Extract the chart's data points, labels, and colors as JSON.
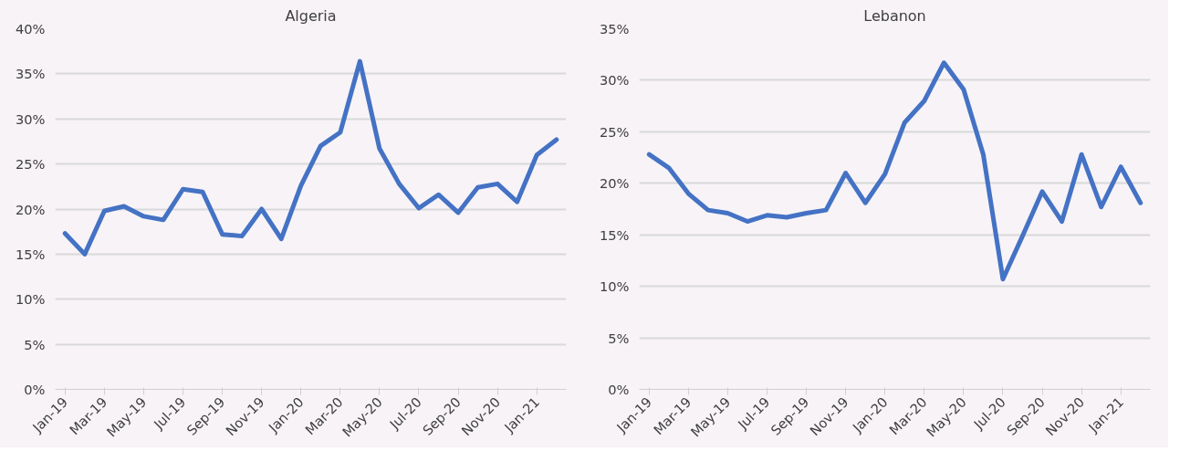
{
  "chart_data": [
    {
      "type": "line",
      "title": "Algeria",
      "categories": [
        "Jan-19",
        null,
        "Mar-19",
        null,
        "May-19",
        null,
        "Jul-19",
        null,
        "Sep-19",
        null,
        "Nov-19",
        null,
        "Jan-20",
        null,
        "Mar-20",
        null,
        "May-20",
        null,
        "Jul-20",
        null,
        "Sep-20",
        null,
        "Nov-20",
        null,
        "Jan-21",
        null
      ],
      "series": [
        {
          "color": "#4472c4",
          "values": [
            17.3,
            15.0,
            19.8,
            20.3,
            19.2,
            18.8,
            22.2,
            21.9,
            17.2,
            17.0,
            20.0,
            16.7,
            22.6,
            27.0,
            28.5,
            36.4,
            26.7,
            22.8,
            20.1,
            21.6,
            19.6,
            22.4,
            22.8,
            20.8,
            26.0,
            27.7
          ]
        }
      ],
      "ylim": [
        0,
        40
      ],
      "yticks": [
        {
          "value": 0,
          "label": "0%"
        },
        {
          "value": 5,
          "label": "5%"
        },
        {
          "value": 10,
          "label": "10%"
        },
        {
          "value": 15,
          "label": "15%"
        },
        {
          "value": 20,
          "label": "20%"
        },
        {
          "value": 25,
          "label": "25%"
        },
        {
          "value": 30,
          "label": "30%"
        },
        {
          "value": 35,
          "label": "35%"
        },
        {
          "value": 40,
          "label": "40%"
        }
      ],
      "grid": "y",
      "marker": "none",
      "line_style": "solid"
    },
    {
      "type": "line",
      "title": "Lebanon",
      "categories": [
        "Jan-19",
        null,
        "Mar-19",
        null,
        "May-19",
        null,
        "Jul-19",
        null,
        "Sep-19",
        null,
        "Nov-19",
        null,
        "Jan-20",
        null,
        "Mar-20",
        null,
        "May-20",
        null,
        "Jul-20",
        null,
        "Sep-20",
        null,
        "Nov-20",
        null,
        "Jan-21",
        null
      ],
      "series": [
        {
          "color": "#4472c4",
          "values": [
            22.8,
            21.5,
            19.0,
            17.4,
            17.1,
            16.3,
            16.9,
            16.7,
            17.1,
            17.4,
            21.0,
            18.1,
            20.9,
            25.9,
            28.0,
            31.7,
            29.1,
            22.8,
            10.7,
            14.9,
            19.2,
            16.3,
            22.8,
            17.7,
            21.6,
            18.1
          ]
        }
      ],
      "ylim": [
        0,
        35
      ],
      "yticks": [
        {
          "value": 0,
          "label": "0%"
        },
        {
          "value": 5,
          "label": "5%"
        },
        {
          "value": 10,
          "label": "10%"
        },
        {
          "value": 15,
          "label": "15%"
        },
        {
          "value": 20,
          "label": "20%"
        },
        {
          "value": 25,
          "label": "25%"
        },
        {
          "value": 30,
          "label": "30%"
        },
        {
          "value": 35,
          "label": "35%"
        }
      ],
      "grid": "y",
      "marker": "none",
      "line_style": "solid"
    }
  ]
}
